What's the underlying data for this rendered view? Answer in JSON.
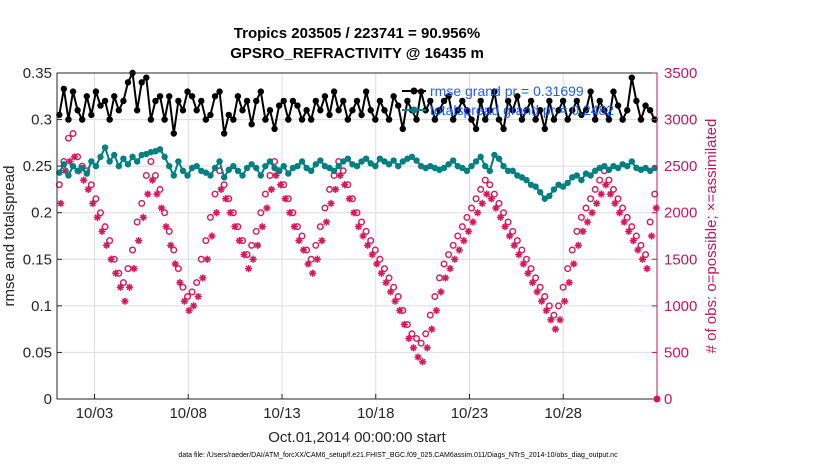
{
  "chart_data": {
    "type": "line",
    "title": "Tropics 203505 / 223741 = 90.956%",
    "subtitle": "GPSRO_REFRACTIVITY @ 16435 m",
    "xlabel": "Oct.01,2014 00:00:00 start",
    "ylabel": "rmse and totalspread",
    "y2label": "# of obs: o=possible; ×=assimilated",
    "footer": "data file: /Users/raeder/DAI/ATM_forcXX/CAM6_setup/f.e21.FHIST_BGC.f09_025.CAM6assim.011/Diags_NTrS_2014-10/obs_diag_output.nc",
    "xlim": [
      1.0,
      33.0
    ],
    "ylim": [
      0,
      0.35
    ],
    "y2lim": [
      0,
      3500
    ],
    "xticks": [
      3,
      8,
      13,
      18,
      23,
      28
    ],
    "xtick_labels": [
      "10/03",
      "10/08",
      "10/13",
      "10/18",
      "10/23",
      "10/28"
    ],
    "yticks": [
      0,
      0.05,
      0.1,
      0.15,
      0.2,
      0.25,
      0.3,
      0.35
    ],
    "ytick_labels": [
      "0",
      "0.05",
      "0.1",
      "0.15",
      "0.2",
      "0.25",
      "0.3",
      "0.35"
    ],
    "y2ticks": [
      0,
      500,
      1000,
      1500,
      2000,
      2500,
      3000,
      3500
    ],
    "y2tick_labels": [
      "0",
      "500",
      "1000",
      "1500",
      "2000",
      "2500",
      "3000",
      "3500"
    ],
    "legend": [
      "rmse grand pr = 0.31699",
      "totalspread grand pr = 0.2482"
    ],
    "colors": {
      "rmse": "#000000",
      "totalspread": "#008080",
      "obs": "#d6185c",
      "axis": "#262626",
      "legend_text": "#1a5cff"
    },
    "series": [
      {
        "name": "rmse",
        "axis": "left",
        "values": [
          0.305,
          0.333,
          0.3,
          0.33,
          0.31,
          0.3,
          0.325,
          0.305,
          0.33,
          0.315,
          0.32,
          0.3,
          0.325,
          0.31,
          0.32,
          0.34,
          0.35,
          0.31,
          0.34,
          0.345,
          0.3,
          0.32,
          0.325,
          0.3,
          0.325,
          0.285,
          0.32,
          0.31,
          0.33,
          0.325,
          0.31,
          0.32,
          0.3,
          0.305,
          0.325,
          0.33,
          0.285,
          0.305,
          0.3,
          0.325,
          0.31,
          0.32,
          0.295,
          0.32,
          0.33,
          0.3,
          0.31,
          0.29,
          0.315,
          0.32,
          0.3,
          0.32,
          0.315,
          0.3,
          0.31,
          0.3,
          0.32,
          0.31,
          0.325,
          0.305,
          0.33,
          0.31,
          0.32,
          0.3,
          0.31,
          0.32,
          0.305,
          0.33,
          0.31,
          0.3,
          0.32,
          0.31,
          0.3,
          0.325,
          0.315,
          0.29,
          0.32,
          0.31,
          0.3,
          0.33,
          0.31,
          0.32,
          0.3,
          0.31,
          0.32,
          0.325,
          0.3,
          0.31,
          0.32,
          0.31,
          0.3,
          0.29,
          0.32,
          0.3,
          0.31,
          0.33,
          0.3,
          0.29,
          0.32,
          0.31,
          0.325,
          0.3,
          0.31,
          0.32,
          0.3,
          0.31,
          0.29,
          0.32,
          0.3,
          0.31,
          0.32,
          0.3,
          0.31,
          0.32,
          0.305,
          0.31,
          0.33,
          0.3,
          0.32,
          0.31,
          0.3,
          0.33,
          0.315,
          0.3,
          0.31,
          0.345,
          0.32,
          0.3,
          0.315,
          0.31,
          0.3
        ]
      },
      {
        "name": "totalspread",
        "axis": "left",
        "values": [
          0.243,
          0.252,
          0.24,
          0.25,
          0.245,
          0.248,
          0.242,
          0.255,
          0.25,
          0.26,
          0.27,
          0.255,
          0.262,
          0.25,
          0.258,
          0.252,
          0.26,
          0.255,
          0.262,
          0.263,
          0.265,
          0.266,
          0.268,
          0.26,
          0.25,
          0.24,
          0.255,
          0.245,
          0.24,
          0.248,
          0.25,
          0.245,
          0.243,
          0.24,
          0.248,
          0.255,
          0.238,
          0.246,
          0.25,
          0.245,
          0.24,
          0.248,
          0.252,
          0.248,
          0.24,
          0.25,
          0.255,
          0.248,
          0.245,
          0.25,
          0.242,
          0.248,
          0.25,
          0.255,
          0.248,
          0.245,
          0.252,
          0.256,
          0.25,
          0.248,
          0.245,
          0.25,
          0.255,
          0.258,
          0.252,
          0.25,
          0.255,
          0.258,
          0.253,
          0.25,
          0.258,
          0.255,
          0.252,
          0.256,
          0.25,
          0.255,
          0.258,
          0.26,
          0.256,
          0.25,
          0.248,
          0.25,
          0.248,
          0.246,
          0.248,
          0.252,
          0.256,
          0.25,
          0.248,
          0.245,
          0.25,
          0.255,
          0.26,
          0.25,
          0.245,
          0.262,
          0.258,
          0.25,
          0.245,
          0.245,
          0.24,
          0.238,
          0.235,
          0.23,
          0.228,
          0.222,
          0.215,
          0.218,
          0.225,
          0.23,
          0.228,
          0.232,
          0.238,
          0.24,
          0.235,
          0.242,
          0.24,
          0.245,
          0.248,
          0.25,
          0.246,
          0.25,
          0.248,
          0.252,
          0.25,
          0.255,
          0.248,
          0.246,
          0.248,
          0.245,
          0.248
        ]
      },
      {
        "name": "obs_possible",
        "axis": "right",
        "marker": "o",
        "values": [
          2300,
          2550,
          2800,
          2850,
          2600,
          2500,
          2450,
          2300,
          2150,
          2000,
          1850,
          1700,
          1500,
          1350,
          1250,
          1400,
          1600,
          1900,
          2100,
          2400,
          2550,
          2400,
          2250,
          2000,
          1800,
          1600,
          1400,
          1200,
          1100,
          1150,
          1250,
          1500,
          1700,
          1950,
          2200,
          2450,
          2300,
          2150,
          2000,
          1850,
          1700,
          1550,
          1650,
          1800,
          2000,
          2200,
          2400,
          2550,
          2450,
          2300,
          2150,
          2000,
          1850,
          1750,
          1600,
          1500,
          1650,
          1850,
          2050,
          2250,
          2400,
          2550,
          2450,
          2300,
          2150,
          2000,
          1900,
          1800,
          1700,
          1600,
          1500,
          1400,
          1300,
          1200,
          1100,
          950,
          800,
          700,
          650,
          600,
          700,
          900,
          1100,
          1300,
          1450,
          1550,
          1650,
          1750,
          1850,
          1950,
          2050,
          2150,
          2250,
          2350,
          2300,
          2200,
          2100,
          2000,
          1900,
          1800,
          1700,
          1600,
          1500,
          1400,
          1300,
          1200,
          1100,
          1000,
          900,
          1000,
          1200,
          1400,
          1600,
          1800,
          1950,
          2050,
          2150,
          2250,
          2350,
          2450,
          2350,
          2250,
          2150,
          2050,
          1950,
          1850,
          1750,
          1650,
          1550,
          1900,
          2200
        ]
      },
      {
        "name": "obs_assimilated",
        "axis": "right",
        "marker": "x",
        "values": [
          2100,
          2450,
          2550,
          2600,
          2450,
          2350,
          2250,
          2100,
          1950,
          1800,
          1650,
          1500,
          1350,
          1200,
          1050,
          1200,
          1400,
          1700,
          1950,
          2200,
          2350,
          2200,
          2050,
          1850,
          1650,
          1450,
          1250,
          1050,
          950,
          1000,
          1100,
          1300,
          1500,
          1750,
          2000,
          2250,
          2150,
          2000,
          1850,
          1700,
          1550,
          1400,
          1500,
          1650,
          1850,
          2050,
          2250,
          2400,
          2300,
          2150,
          2000,
          1850,
          1700,
          1600,
          1450,
          1350,
          1500,
          1700,
          1900,
          2100,
          2250,
          2400,
          2300,
          2150,
          2000,
          1850,
          1750,
          1650,
          1550,
          1450,
          1350,
          1250,
          1150,
          1050,
          950,
          800,
          650,
          550,
          450,
          400,
          550,
          750,
          950,
          1150,
          1300,
          1400,
          1500,
          1600,
          1700,
          1800,
          1900,
          2000,
          2100,
          2200,
          2150,
          2050,
          1950,
          1850,
          1750,
          1650,
          1550,
          1450,
          1350,
          1250,
          1150,
          1050,
          950,
          850,
          750,
          850,
          1050,
          1250,
          1450,
          1650,
          1800,
          1900,
          2000,
          2100,
          2200,
          2300,
          2200,
          2100,
          2000,
          1900,
          1800,
          1700,
          1600,
          1500,
          1400,
          1750,
          2050
        ]
      }
    ]
  }
}
